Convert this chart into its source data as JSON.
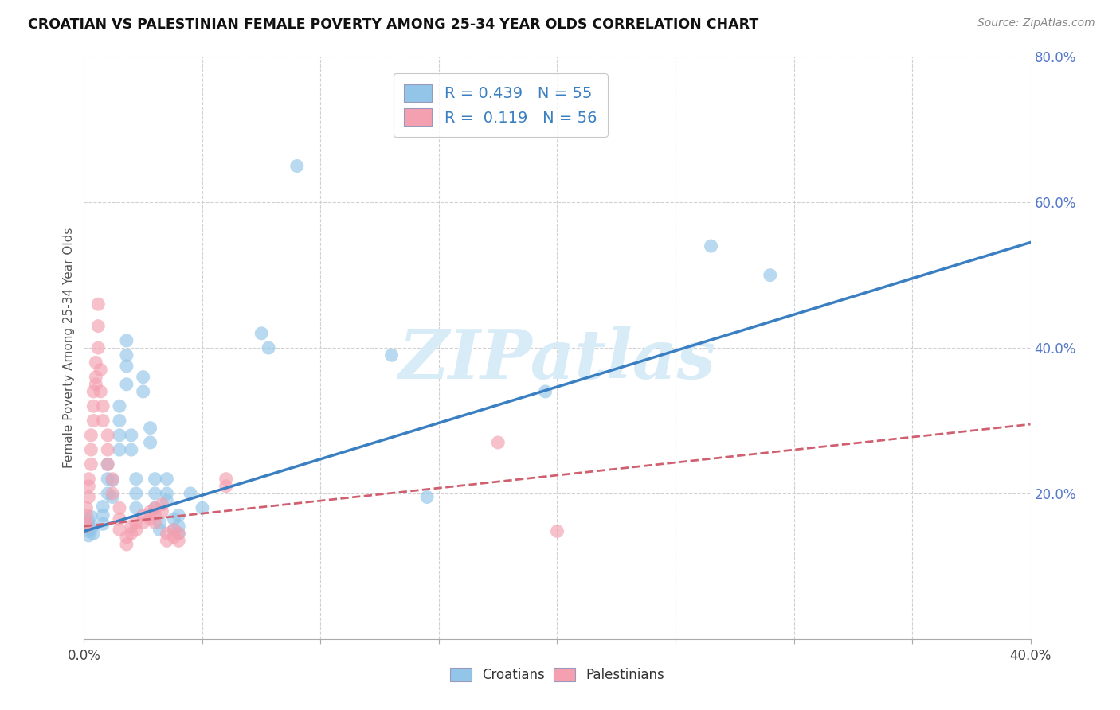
{
  "title": "CROATIAN VS PALESTINIAN FEMALE POVERTY AMONG 25-34 YEAR OLDS CORRELATION CHART",
  "source": "Source: ZipAtlas.com",
  "ylabel": "Female Poverty Among 25-34 Year Olds",
  "xlim": [
    0.0,
    0.42
  ],
  "ylim": [
    -0.05,
    0.84
  ],
  "plot_xlim": [
    0.0,
    0.4
  ],
  "plot_ylim": [
    0.0,
    0.8
  ],
  "xticks": [
    0.0,
    0.05,
    0.1,
    0.15,
    0.2,
    0.25,
    0.3,
    0.35,
    0.4
  ],
  "yticks": [
    0.0,
    0.2,
    0.4,
    0.6,
    0.8
  ],
  "croatian_R": "0.439",
  "croatian_N": "55",
  "palestinian_R": "0.119",
  "palestinian_N": "56",
  "croatian_color": "#92c5e8",
  "palestinian_color": "#f4a0b0",
  "trendline_croatian_color": "#3a7fc1",
  "trendline_palestinian_color": "#d06070",
  "watermark_text": "ZIPatlas",
  "watermark_color": "#d8ecf8",
  "axis_tick_color": "#5577cc",
  "grid_color": "#cccccc",
  "background_color": "#ffffff",
  "legend_text_color": "#3a7fc1",
  "croatian_scatter": [
    [
      0.002,
      0.155
    ],
    [
      0.002,
      0.148
    ],
    [
      0.002,
      0.142
    ],
    [
      0.002,
      0.162
    ],
    [
      0.003,
      0.168
    ],
    [
      0.003,
      0.152
    ],
    [
      0.004,
      0.145
    ],
    [
      0.008,
      0.158
    ],
    [
      0.008,
      0.17
    ],
    [
      0.008,
      0.182
    ],
    [
      0.01,
      0.2
    ],
    [
      0.01,
      0.22
    ],
    [
      0.01,
      0.24
    ],
    [
      0.012,
      0.195
    ],
    [
      0.012,
      0.218
    ],
    [
      0.015,
      0.26
    ],
    [
      0.015,
      0.28
    ],
    [
      0.015,
      0.3
    ],
    [
      0.015,
      0.32
    ],
    [
      0.018,
      0.35
    ],
    [
      0.018,
      0.375
    ],
    [
      0.018,
      0.39
    ],
    [
      0.018,
      0.41
    ],
    [
      0.02,
      0.28
    ],
    [
      0.02,
      0.26
    ],
    [
      0.022,
      0.22
    ],
    [
      0.022,
      0.2
    ],
    [
      0.022,
      0.18
    ],
    [
      0.025,
      0.34
    ],
    [
      0.025,
      0.36
    ],
    [
      0.028,
      0.29
    ],
    [
      0.028,
      0.27
    ],
    [
      0.03,
      0.22
    ],
    [
      0.03,
      0.2
    ],
    [
      0.03,
      0.18
    ],
    [
      0.032,
      0.16
    ],
    [
      0.032,
      0.15
    ],
    [
      0.035,
      0.2
    ],
    [
      0.035,
      0.22
    ],
    [
      0.035,
      0.19
    ],
    [
      0.038,
      0.165
    ],
    [
      0.038,
      0.15
    ],
    [
      0.04,
      0.17
    ],
    [
      0.04,
      0.155
    ],
    [
      0.04,
      0.145
    ],
    [
      0.045,
      0.2
    ],
    [
      0.05,
      0.18
    ],
    [
      0.075,
      0.42
    ],
    [
      0.078,
      0.4
    ],
    [
      0.09,
      0.65
    ],
    [
      0.13,
      0.39
    ],
    [
      0.145,
      0.195
    ],
    [
      0.195,
      0.34
    ],
    [
      0.265,
      0.54
    ],
    [
      0.29,
      0.5
    ]
  ],
  "palestinian_scatter": [
    [
      0.001,
      0.16
    ],
    [
      0.001,
      0.17
    ],
    [
      0.001,
      0.18
    ],
    [
      0.001,
      0.155
    ],
    [
      0.002,
      0.195
    ],
    [
      0.002,
      0.21
    ],
    [
      0.002,
      0.22
    ],
    [
      0.003,
      0.24
    ],
    [
      0.003,
      0.26
    ],
    [
      0.003,
      0.28
    ],
    [
      0.004,
      0.3
    ],
    [
      0.004,
      0.32
    ],
    [
      0.004,
      0.34
    ],
    [
      0.005,
      0.36
    ],
    [
      0.005,
      0.38
    ],
    [
      0.005,
      0.35
    ],
    [
      0.006,
      0.4
    ],
    [
      0.006,
      0.43
    ],
    [
      0.006,
      0.46
    ],
    [
      0.007,
      0.37
    ],
    [
      0.007,
      0.34
    ],
    [
      0.008,
      0.32
    ],
    [
      0.008,
      0.3
    ],
    [
      0.01,
      0.28
    ],
    [
      0.01,
      0.26
    ],
    [
      0.01,
      0.24
    ],
    [
      0.012,
      0.22
    ],
    [
      0.012,
      0.2
    ],
    [
      0.015,
      0.18
    ],
    [
      0.015,
      0.165
    ],
    [
      0.015,
      0.15
    ],
    [
      0.018,
      0.14
    ],
    [
      0.018,
      0.13
    ],
    [
      0.02,
      0.155
    ],
    [
      0.02,
      0.145
    ],
    [
      0.022,
      0.16
    ],
    [
      0.022,
      0.15
    ],
    [
      0.025,
      0.17
    ],
    [
      0.025,
      0.16
    ],
    [
      0.028,
      0.175
    ],
    [
      0.028,
      0.165
    ],
    [
      0.03,
      0.18
    ],
    [
      0.03,
      0.17
    ],
    [
      0.03,
      0.16
    ],
    [
      0.033,
      0.185
    ],
    [
      0.033,
      0.175
    ],
    [
      0.035,
      0.145
    ],
    [
      0.035,
      0.135
    ],
    [
      0.038,
      0.15
    ],
    [
      0.038,
      0.14
    ],
    [
      0.04,
      0.145
    ],
    [
      0.04,
      0.135
    ],
    [
      0.06,
      0.22
    ],
    [
      0.06,
      0.21
    ],
    [
      0.175,
      0.27
    ],
    [
      0.2,
      0.148
    ]
  ],
  "trendline_cr_x0": 0.0,
  "trendline_cr_y0": 0.148,
  "trendline_cr_x1": 0.4,
  "trendline_cr_y1": 0.545,
  "trendline_pa_x0": 0.0,
  "trendline_pa_y0": 0.155,
  "trendline_pa_x1": 0.4,
  "trendline_pa_y1": 0.295
}
